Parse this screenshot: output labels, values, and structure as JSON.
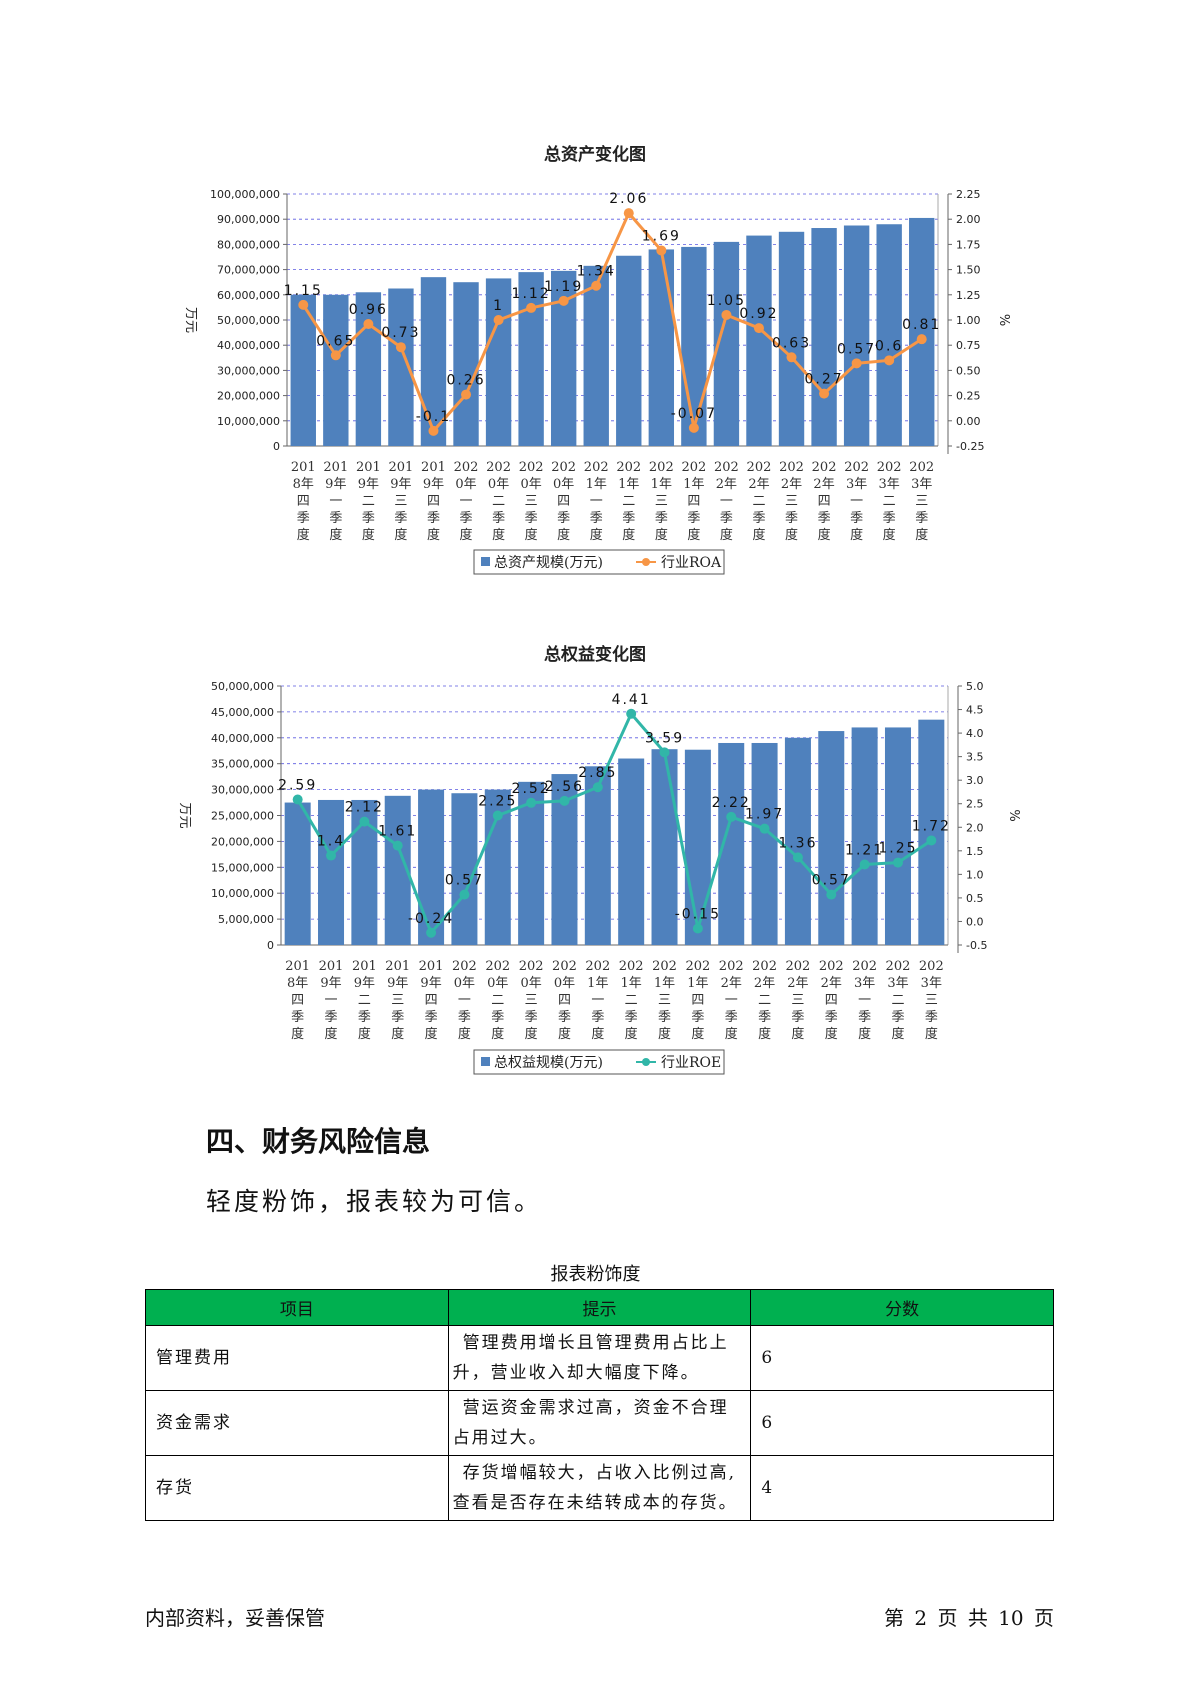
{
  "chart_data": [
    {
      "type": "bar+line",
      "title": "总资产变化图",
      "ylabel": "万元",
      "y2label": "%",
      "ylim": [
        0,
        100000000
      ],
      "yticks": [
        "0",
        "10,000,000",
        "20,000,000",
        "30,000,000",
        "40,000,000",
        "50,000,000",
        "60,000,000",
        "70,000,000",
        "80,000,000",
        "90,000,000",
        "100,000,000"
      ],
      "y2lim": [
        -0.25,
        2.25
      ],
      "y2ticks": [
        "-0.25",
        "0.00",
        "0.25",
        "0.50",
        "0.75",
        "1.00",
        "1.25",
        "1.50",
        "1.75",
        "2.00",
        "2.25"
      ],
      "categories": [
        "2018年四季度",
        "2019年一季度",
        "2019年二季度",
        "2019年三季度",
        "2019年四季度",
        "2020年一季度",
        "2020年二季度",
        "2020年三季度",
        "2020年四季度",
        "2021年一季度",
        "2021年二季度",
        "2021年三季度",
        "2021年四季度",
        "2022年一季度",
        "2022年二季度",
        "2022年三季度",
        "2022年四季度",
        "2023年一季度",
        "2023年二季度",
        "2023年三季度"
      ],
      "category_lines": [
        [
          "201",
          "8年",
          "四",
          "季",
          "度"
        ],
        [
          "201",
          "9年",
          "一",
          "季",
          "度"
        ],
        [
          "201",
          "9年",
          "二",
          "季",
          "度"
        ],
        [
          "201",
          "9年",
          "三",
          "季",
          "度"
        ],
        [
          "201",
          "9年",
          "四",
          "季",
          "度"
        ],
        [
          "202",
          "0年",
          "一",
          "季",
          "度"
        ],
        [
          "202",
          "0年",
          "二",
          "季",
          "度"
        ],
        [
          "202",
          "0年",
          "三",
          "季",
          "度"
        ],
        [
          "202",
          "0年",
          "四",
          "季",
          "度"
        ],
        [
          "202",
          "1年",
          "一",
          "季",
          "度"
        ],
        [
          "202",
          "1年",
          "二",
          "季",
          "度"
        ],
        [
          "202",
          "1年",
          "三",
          "季",
          "度"
        ],
        [
          "202",
          "1年",
          "四",
          "季",
          "度"
        ],
        [
          "202",
          "2年",
          "一",
          "季",
          "度"
        ],
        [
          "202",
          "2年",
          "二",
          "季",
          "度"
        ],
        [
          "202",
          "2年",
          "三",
          "季",
          "度"
        ],
        [
          "202",
          "2年",
          "四",
          "季",
          "度"
        ],
        [
          "202",
          "3年",
          "一",
          "季",
          "度"
        ],
        [
          "202",
          "3年",
          "二",
          "季",
          "度"
        ],
        [
          "202",
          "3年",
          "三",
          "季",
          "度"
        ]
      ],
      "series": [
        {
          "name": "总资产规模(万元)",
          "kind": "bar",
          "color": "#4f81bd",
          "values": [
            60000000,
            60000000,
            61000000,
            62500000,
            67000000,
            65000000,
            66500000,
            69000000,
            69500000,
            71500000,
            75500000,
            78000000,
            79000000,
            81000000,
            83500000,
            85000000,
            86500000,
            87500000,
            88000000,
            90500000
          ]
        },
        {
          "name": "行业ROA",
          "kind": "line",
          "color": "#f79646",
          "values": [
            1.15,
            0.65,
            0.96,
            0.73,
            -0.1,
            0.26,
            1,
            1.12,
            1.19,
            1.34,
            2.06,
            1.69,
            -0.07,
            1.05,
            0.92,
            0.63,
            0.27,
            0.57,
            0.6,
            0.81
          ],
          "labels": [
            "1.15",
            "0.65",
            "0.96",
            "0.73",
            "-0.1",
            "0.26",
            "1",
            "1.12",
            "1.19",
            "1.34",
            "2.06",
            "1.69",
            "-0.07",
            "1.05",
            "0.92",
            "0.63",
            "0.27",
            "0.57",
            "0.6",
            "0.81"
          ]
        }
      ],
      "grid": true,
      "legend": "bottom"
    },
    {
      "type": "bar+line",
      "title": "总权益变化图",
      "ylabel": "万元",
      "y2label": "%",
      "ylim": [
        0,
        50000000
      ],
      "yticks": [
        "0",
        "5,000,000",
        "10,000,000",
        "15,000,000",
        "20,000,000",
        "25,000,000",
        "30,000,000",
        "35,000,000",
        "40,000,000",
        "45,000,000",
        "50,000,000"
      ],
      "y2lim": [
        -0.5,
        5.0
      ],
      "y2ticks": [
        "-0.5",
        "0.0",
        "0.5",
        "1.0",
        "1.5",
        "2.0",
        "2.5",
        "3.0",
        "3.5",
        "4.0",
        "4.5",
        "5.0"
      ],
      "categories": [
        "2018年四季度",
        "2019年一季度",
        "2019年二季度",
        "2019年三季度",
        "2019年四季度",
        "2020年一季度",
        "2020年二季度",
        "2020年三季度",
        "2020年四季度",
        "2021年一季度",
        "2021年二季度",
        "2021年三季度",
        "2021年四季度",
        "2022年一季度",
        "2022年二季度",
        "2022年三季度",
        "2022年四季度",
        "2023年一季度",
        "2023年二季度",
        "2023年三季度"
      ],
      "category_lines": [
        [
          "201",
          "8年",
          "四",
          "季",
          "度"
        ],
        [
          "201",
          "9年",
          "一",
          "季",
          "度"
        ],
        [
          "201",
          "9年",
          "二",
          "季",
          "度"
        ],
        [
          "201",
          "9年",
          "三",
          "季",
          "度"
        ],
        [
          "201",
          "9年",
          "四",
          "季",
          "度"
        ],
        [
          "202",
          "0年",
          "一",
          "季",
          "度"
        ],
        [
          "202",
          "0年",
          "二",
          "季",
          "度"
        ],
        [
          "202",
          "0年",
          "三",
          "季",
          "度"
        ],
        [
          "202",
          "0年",
          "四",
          "季",
          "度"
        ],
        [
          "202",
          "1年",
          "一",
          "季",
          "度"
        ],
        [
          "202",
          "1年",
          "二",
          "季",
          "度"
        ],
        [
          "202",
          "1年",
          "三",
          "季",
          "度"
        ],
        [
          "202",
          "1年",
          "四",
          "季",
          "度"
        ],
        [
          "202",
          "2年",
          "一",
          "季",
          "度"
        ],
        [
          "202",
          "2年",
          "二",
          "季",
          "度"
        ],
        [
          "202",
          "2年",
          "三",
          "季",
          "度"
        ],
        [
          "202",
          "2年",
          "四",
          "季",
          "度"
        ],
        [
          "202",
          "3年",
          "一",
          "季",
          "度"
        ],
        [
          "202",
          "3年",
          "二",
          "季",
          "度"
        ],
        [
          "202",
          "3年",
          "三",
          "季",
          "度"
        ]
      ],
      "series": [
        {
          "name": "总权益规模(万元)",
          "kind": "bar",
          "color": "#4f81bd",
          "values": [
            27500000,
            28000000,
            28000000,
            28800000,
            30000000,
            29300000,
            30000000,
            31500000,
            33000000,
            34500000,
            36000000,
            37800000,
            37700000,
            39000000,
            39000000,
            40000000,
            41300000,
            42000000,
            42000000,
            43500000
          ]
        },
        {
          "name": "行业ROE",
          "kind": "line",
          "color": "#31b6a8",
          "values": [
            2.59,
            1.4,
            2.12,
            1.61,
            -0.24,
            0.57,
            2.25,
            2.52,
            2.56,
            2.85,
            4.41,
            3.59,
            -0.15,
            2.22,
            1.97,
            1.36,
            0.57,
            1.21,
            1.25,
            1.72
          ],
          "labels": [
            "2.59",
            "1.4",
            "2.12",
            "1.61",
            "-0.24",
            "0.57",
            "2.25",
            "2.52",
            "2.56",
            "2.85",
            "4.41",
            "3.59",
            "-0.15",
            "2.22",
            "1.97",
            "1.36",
            "0.57",
            "1.21",
            "1.25",
            "1.72"
          ]
        }
      ],
      "grid": true,
      "legend": "bottom"
    }
  ],
  "section": {
    "heading": "四、财务风险信息",
    "summary": "轻度粉饰，报表较为可信。"
  },
  "risk_table": {
    "caption": "报表粉饰度",
    "headers": [
      "项目",
      "提示",
      "分数"
    ],
    "rows": [
      {
        "item": "管理费用",
        "hint": "管理费用增长且管理费用占比上升，营业收入却大幅度下降。",
        "score": "6"
      },
      {
        "item": "资金需求",
        "hint": "营运资金需求过高，资金不合理占用过大。",
        "score": "6"
      },
      {
        "item": "存货",
        "hint": "存货增幅较大，占收入比例过高,查看是否存在未结转成本的存货。",
        "score": "4"
      }
    ]
  },
  "footer": {
    "left": "内部资料，妥善保管",
    "right": "第 2 页   共 10 页"
  }
}
